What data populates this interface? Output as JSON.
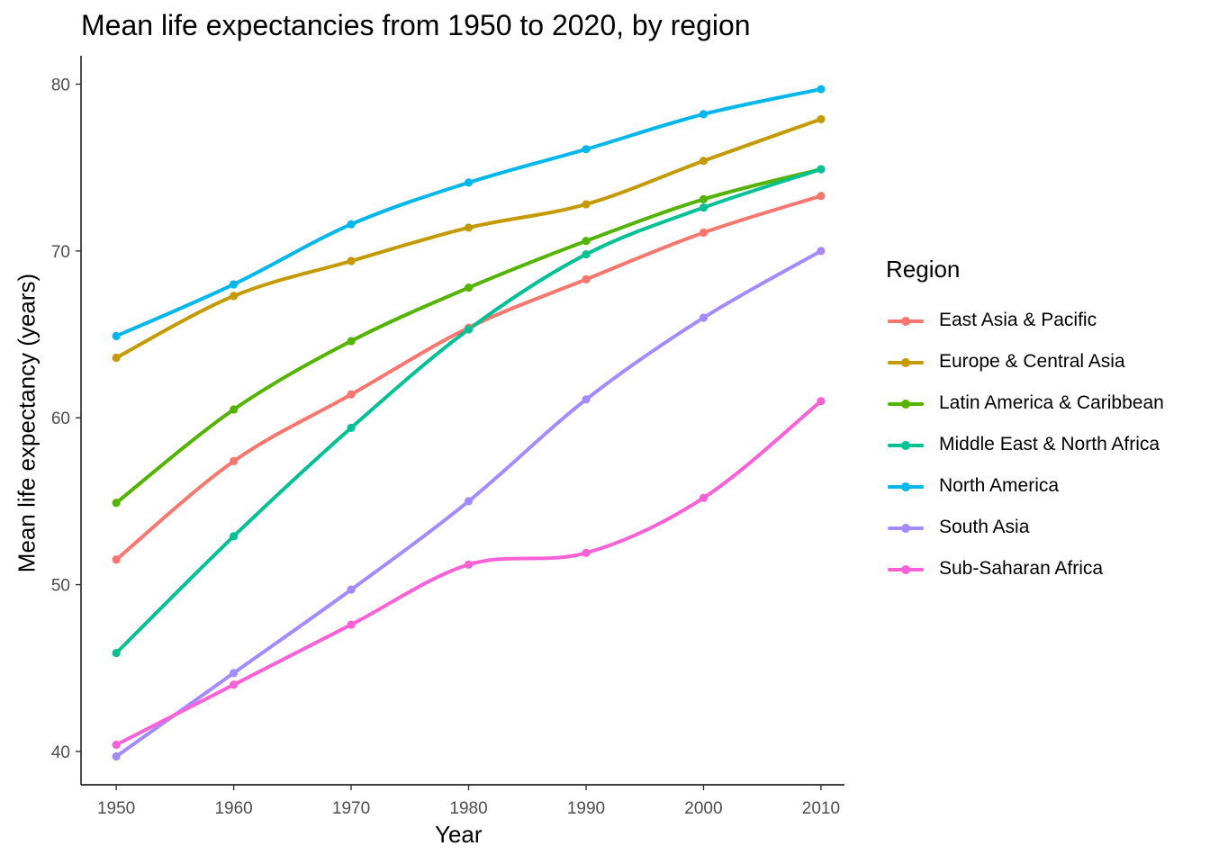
{
  "chart_data": {
    "type": "line",
    "title": "Mean life expectancies from 1950 to 2020, by region",
    "xlabel": "Year",
    "ylabel": "Mean life expectancy (years)",
    "xlim": [
      1947,
      2012
    ],
    "ylim": [
      38,
      81.7
    ],
    "x_ticks": [
      "1950",
      "1960",
      "1970",
      "1980",
      "1990",
      "2000",
      "2010"
    ],
    "y_ticks": [
      "40",
      "50",
      "60",
      "70",
      "80"
    ],
    "x": [
      1950,
      1960,
      1970,
      1980,
      1990,
      2000,
      2010
    ],
    "grid": false,
    "markers": true,
    "legend_title": "Region",
    "legend_position": "right",
    "series": [
      {
        "name": "East Asia & Pacific",
        "color": "#F8766D",
        "values": [
          51.5,
          57.4,
          61.4,
          65.4,
          68.3,
          71.1,
          73.3
        ]
      },
      {
        "name": "Europe & Central Asia",
        "color": "#C49A00",
        "values": [
          63.6,
          67.3,
          69.4,
          71.4,
          72.8,
          75.4,
          77.9
        ]
      },
      {
        "name": "Latin America & Caribbean",
        "color": "#53B400",
        "values": [
          54.9,
          60.5,
          64.6,
          67.8,
          70.6,
          73.1,
          74.9
        ]
      },
      {
        "name": "Middle East & North Africa",
        "color": "#00C094",
        "values": [
          45.9,
          52.9,
          59.4,
          65.3,
          69.8,
          72.6,
          74.9
        ]
      },
      {
        "name": "North America",
        "color": "#00B6EB",
        "values": [
          64.9,
          68.0,
          71.6,
          74.1,
          76.1,
          78.2,
          79.7
        ]
      },
      {
        "name": "South Asia",
        "color": "#A58AFF",
        "values": [
          39.7,
          44.7,
          49.7,
          55.0,
          61.1,
          66.0,
          70.0
        ]
      },
      {
        "name": "Sub-Saharan Africa",
        "color": "#FB61D7",
        "values": [
          40.4,
          44.0,
          47.6,
          51.2,
          51.9,
          55.2,
          61.0
        ]
      }
    ]
  }
}
